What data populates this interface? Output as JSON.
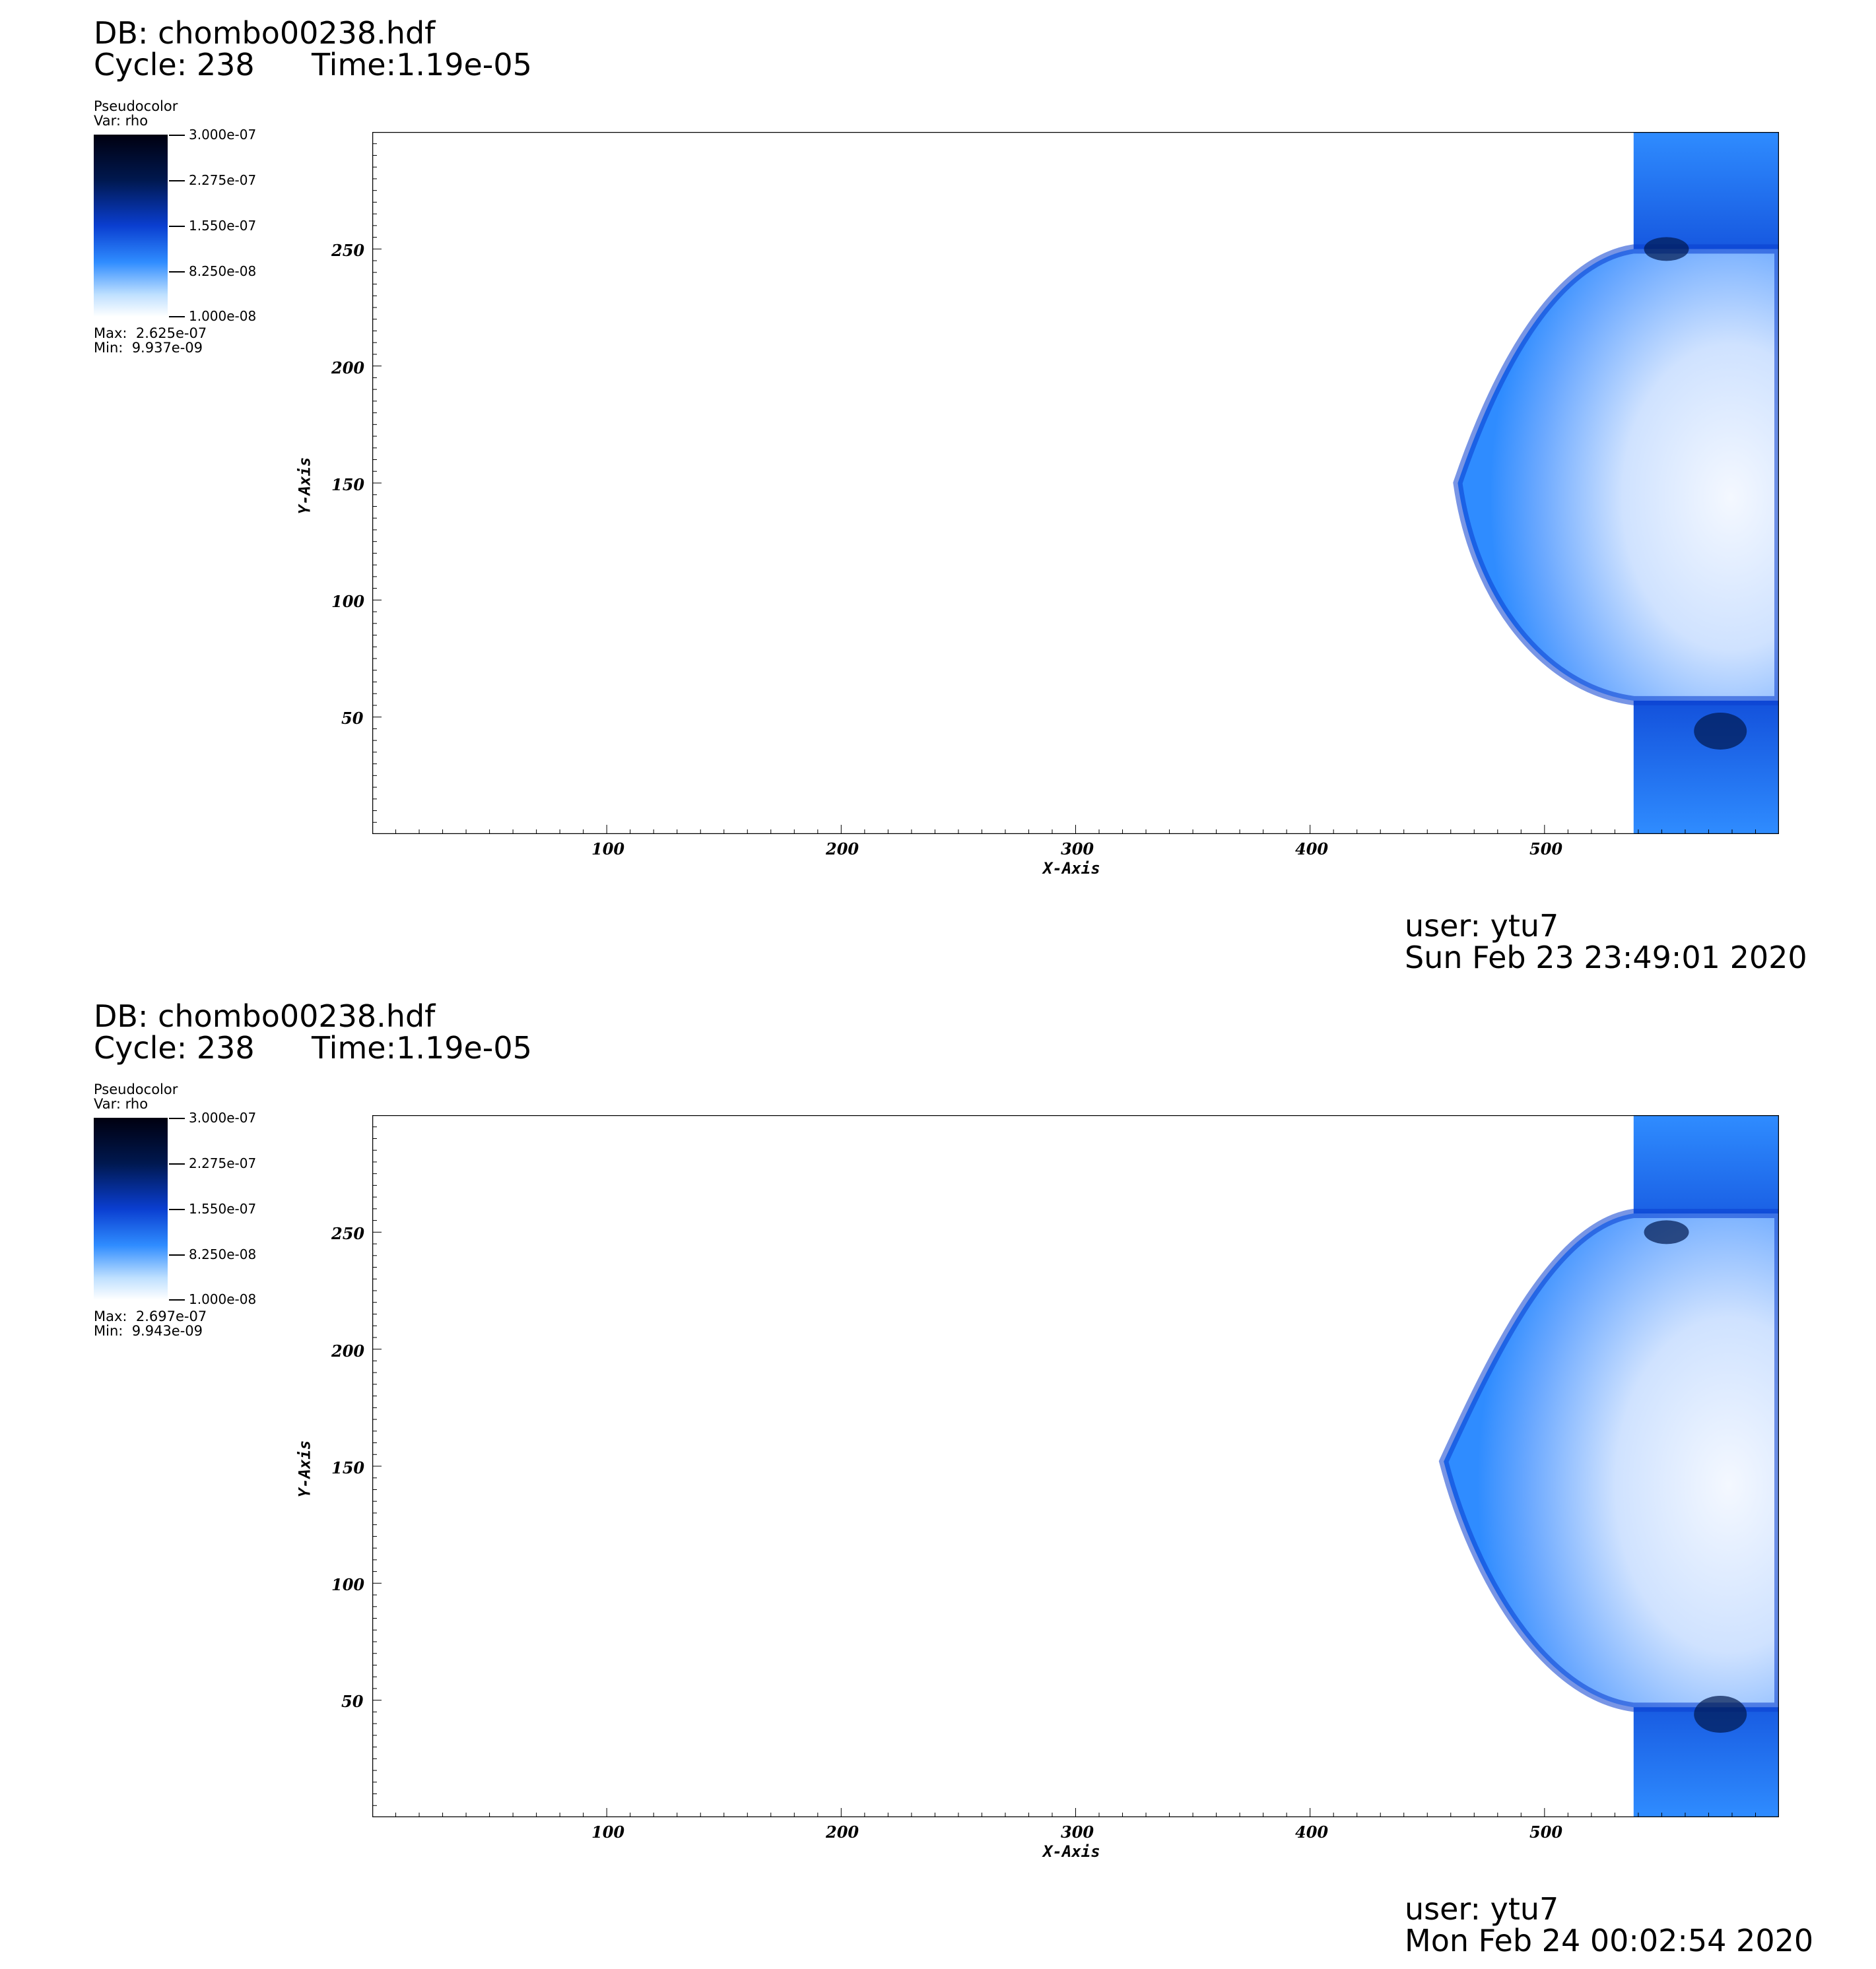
{
  "panels": [
    {
      "db": "DB: chombo00238.hdf",
      "cycle": "Cycle: 238",
      "time": "Time:1.19e-05",
      "legend": {
        "plot_type": "Pseudocolor",
        "var": "Var: rho",
        "max": "Max:  2.625e-07",
        "min": "Min:  9.937e-09"
      },
      "user": "user: ytu7",
      "date": "Sun Feb 23 23:49:01 2020"
    },
    {
      "db": "DB: chombo00238.hdf",
      "cycle": "Cycle: 238",
      "time": "Time:1.19e-05",
      "legend": {
        "plot_type": "Pseudocolor",
        "var": "Var: rho",
        "max": "Max:  2.697e-07",
        "min": "Min:  9.943e-09"
      },
      "user": "user: ytu7",
      "date": "Mon Feb 24 00:02:54 2020"
    }
  ],
  "chart_data": [
    {
      "type": "heatmap",
      "colorbar": {
        "ticks": [
          "3.000e-07",
          "2.275e-07",
          "1.550e-07",
          "8.250e-08",
          "1.000e-08"
        ],
        "range": [
          1e-08,
          3e-07
        ],
        "colors": [
          "#000010",
          "#00184f",
          "#0a3ed0",
          "#2f8cff",
          "#ffffff"
        ]
      },
      "xlabel": "X-Axis",
      "ylabel": "Y-Axis",
      "xlim": [
        0,
        600
      ],
      "ylim": [
        0,
        300
      ],
      "xticks": [
        100,
        200,
        300,
        400,
        500
      ],
      "yticks": [
        50,
        100,
        150,
        200,
        250
      ],
      "bubble_front": {
        "nose_x": 463,
        "y_top": 250,
        "y_bottom": 57,
        "y_mid": 150
      }
    },
    {
      "type": "heatmap",
      "colorbar": {
        "ticks": [
          "3.000e-07",
          "2.275e-07",
          "1.550e-07",
          "8.250e-08",
          "1.000e-08"
        ],
        "range": [
          1e-08,
          3e-07
        ],
        "colors": [
          "#000010",
          "#00184f",
          "#0a3ed0",
          "#2f8cff",
          "#ffffff"
        ]
      },
      "xlabel": "X-Axis",
      "ylabel": "Y-Axis",
      "xlim": [
        0,
        600
      ],
      "ylim": [
        0,
        300
      ],
      "xticks": [
        100,
        200,
        300,
        400,
        500
      ],
      "yticks": [
        50,
        100,
        150,
        200,
        250
      ],
      "bubble_front": {
        "nose_x": 457,
        "y_top": 258,
        "y_bottom": 47,
        "y_mid": 152
      }
    }
  ]
}
